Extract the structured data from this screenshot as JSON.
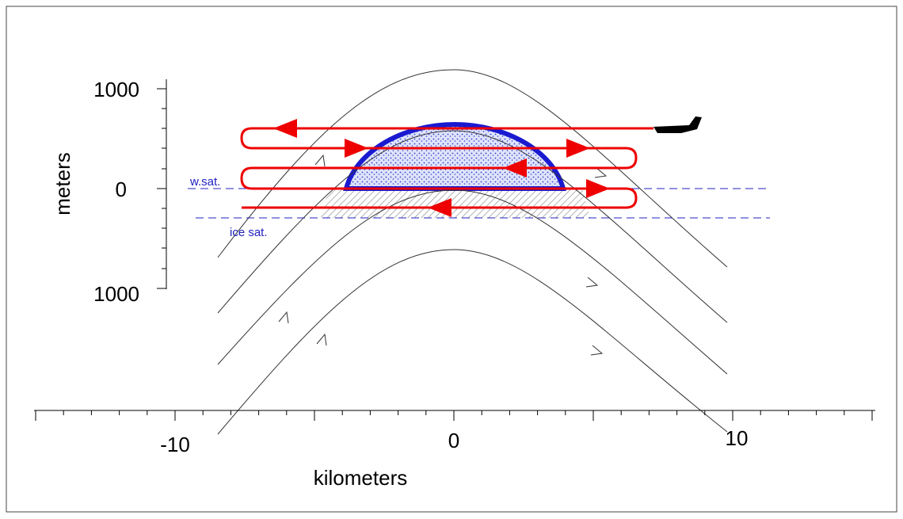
{
  "axes": {
    "y_label": "meters",
    "x_label": "kilometers",
    "y_ticks": [
      "1000",
      "0",
      "1000"
    ],
    "x_ticks": [
      "-10",
      "0",
      "10"
    ]
  },
  "annotations": {
    "water_saturation": "w.sat.",
    "ice_saturation": "ice sat."
  }
}
